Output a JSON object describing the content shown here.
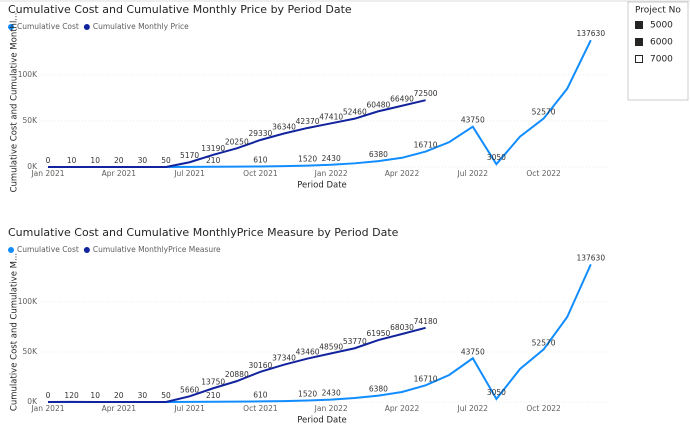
{
  "slicer": {
    "title": "Project No",
    "items": [
      "5000",
      "6000",
      "7000"
    ]
  },
  "chart_data": [
    {
      "type": "line",
      "title": "Cumulative Cost and Cumulative Monthly Price by Period Date",
      "x_label": "Period Date",
      "y_label": "Cumulative Cost and Cumulative Monthl...",
      "categories": [
        "Jan 2021",
        null,
        null,
        "Apr 2021",
        null,
        null,
        "Jul 2021",
        null,
        null,
        "Oct 2021",
        null,
        null,
        "Jan 2022",
        null,
        null,
        "Apr 2022",
        null,
        null,
        "Jul 2022",
        null,
        null,
        "Oct 2022",
        null,
        null
      ],
      "ylim": [
        0,
        140000
      ],
      "yticks": [
        {
          "value": 0,
          "label": "0K"
        },
        {
          "value": 50000,
          "label": "50K"
        },
        {
          "value": 100000,
          "label": "100K"
        }
      ],
      "series": [
        {
          "name": "Cumulative Cost",
          "color": "#118dff",
          "values": [
            0,
            0,
            0,
            0,
            0,
            50,
            100,
            210,
            400,
            610,
            900,
            1520,
            2430,
            4000,
            6380,
            10000,
            16710,
            27000,
            43750,
            3050,
            33000,
            52570,
            85000,
            137630
          ],
          "value_labels": [
            null,
            null,
            null,
            null,
            null,
            null,
            null,
            "210",
            null,
            "610",
            null,
            "1520",
            "2430",
            null,
            "6380",
            null,
            "16710",
            null,
            "43750",
            "3050",
            null,
            "52570",
            null,
            "137630"
          ]
        },
        {
          "name": "Cumulative Monthly Price",
          "color": "#12239e",
          "values": [
            0,
            10,
            10,
            20,
            30,
            50,
            5170,
            13190,
            20250,
            29330,
            36340,
            42370,
            47410,
            52460,
            60480,
            66490,
            72500,
            null,
            null,
            null,
            null,
            null,
            null,
            null
          ],
          "value_labels": [
            "0",
            "10",
            "10",
            "20",
            "30",
            "50",
            "5170",
            "13190",
            "20250",
            "29330",
            "36340",
            "42370",
            "47410",
            "52460",
            "60480",
            "66490",
            "72500",
            null,
            null,
            null,
            null,
            null,
            null,
            null
          ]
        }
      ]
    },
    {
      "type": "line",
      "title": "Cumulative Cost and Cumulative MonthlyPrice Measure by Period Date",
      "x_label": "Period Date",
      "y_label": "Cumulative Cost and Cumulative M...",
      "categories": [
        "Jan 2021",
        null,
        null,
        "Apr 2021",
        null,
        null,
        "Jul 2021",
        null,
        null,
        "Oct 2021",
        null,
        null,
        "Jan 2022",
        null,
        null,
        "Apr 2022",
        null,
        null,
        "Jul 2022",
        null,
        null,
        "Oct 2022",
        null,
        null
      ],
      "ylim": [
        0,
        140000
      ],
      "yticks": [
        {
          "value": 0,
          "label": "0K"
        },
        {
          "value": 50000,
          "label": "50K"
        },
        {
          "value": 100000,
          "label": "100K"
        }
      ],
      "series": [
        {
          "name": "Cumulative Cost",
          "color": "#118dff",
          "values": [
            0,
            0,
            0,
            0,
            0,
            50,
            100,
            210,
            400,
            610,
            900,
            1520,
            2430,
            4000,
            6380,
            10000,
            16710,
            27000,
            43750,
            3050,
            33000,
            52570,
            85000,
            137630
          ],
          "value_labels": [
            null,
            null,
            null,
            null,
            null,
            null,
            null,
            "210",
            null,
            "610",
            null,
            "1520",
            "2430",
            null,
            "6380",
            null,
            "16710",
            null,
            "43750",
            "3050",
            null,
            "52570",
            null,
            "137630"
          ]
        },
        {
          "name": "Cumulative MonthlyPrice Measure",
          "color": "#12239e",
          "values": [
            0,
            120,
            10,
            20,
            30,
            50,
            5660,
            13750,
            20880,
            30160,
            37340,
            43460,
            48590,
            53770,
            61950,
            68030,
            74180,
            null,
            null,
            null,
            null,
            null,
            null,
            null
          ],
          "value_labels": [
            "0",
            "120",
            "10",
            "20",
            "30",
            "50",
            "5660",
            "13750",
            "20880",
            "30160",
            "37340",
            "43460",
            "48590",
            "53770",
            "61950",
            "68030",
            "74180",
            null,
            null,
            null,
            null,
            null,
            null,
            null
          ]
        }
      ]
    }
  ]
}
